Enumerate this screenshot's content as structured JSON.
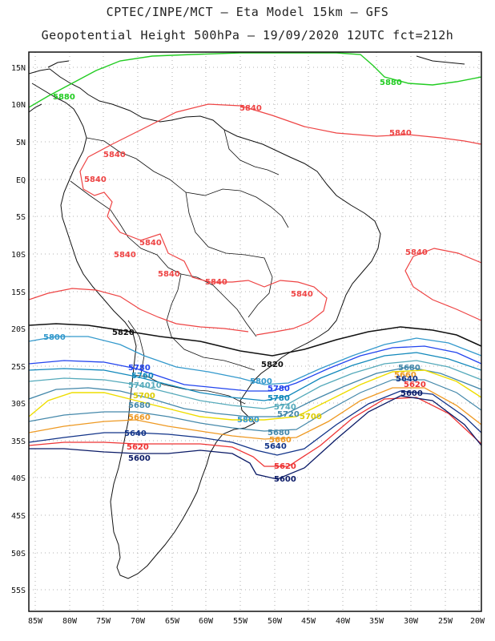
{
  "title": {
    "line1": "CPTEC/INPE/MCT –  Eta Model 15km – GFS",
    "line2": "Geopotential Height 500hPa – 19/09/2020 12UTC fct=212h"
  },
  "axes": {
    "lat_labels": [
      "15N",
      "10N",
      "5N",
      "EQ",
      "5S",
      "10S",
      "15S",
      "20S",
      "25S",
      "30S",
      "35S",
      "40S",
      "45S",
      "50S",
      "55S"
    ],
    "lon_labels": [
      "85W",
      "80W",
      "75W",
      "70W",
      "65W",
      "60W",
      "55W",
      "50W",
      "45W",
      "40W",
      "35W",
      "30W",
      "25W",
      "20W"
    ]
  },
  "colors": {
    "c5880": "#22cc22",
    "c5840": "#ee4444",
    "c5820": "#111111",
    "c5800": "#3399cc",
    "c5780": "#2244ee",
    "c5760": "#1188bb",
    "c5740": "#55aabb",
    "c5720": "#4488aa",
    "c5700": "#eedd00",
    "c5660": "#ee9922",
    "c5640": "#113388",
    "c5620": "#ee3333",
    "c5600": "#0a1a66",
    "coast": "#111111",
    "grid": "#999999"
  },
  "contours": {
    "c5880": "5880",
    "c5840": "5840",
    "c5820": "5820",
    "c5800": "5800",
    "c5780": "5780",
    "c5760": "5760",
    "c5740": "5740",
    "c5720": "5720",
    "c5700": "5700",
    "c5680": "5680",
    "c5660": "5660",
    "c5640": "5640",
    "c5620": "5620",
    "c5600": "5600",
    "c5740_10": "574010"
  }
}
